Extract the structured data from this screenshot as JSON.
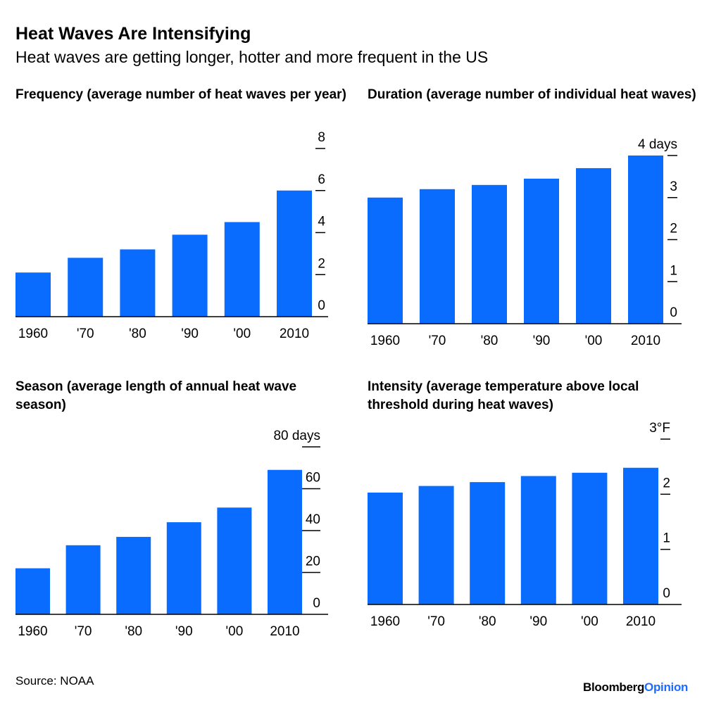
{
  "header": {
    "title": "Heat Waves Are Intensifying",
    "subtitle": "Heat waves are getting longer, hotter and more frequent in the US"
  },
  "footer": {
    "source": "Source: NOAA",
    "brand_bloomberg": "Bloomberg",
    "brand_opinion": "Opinion"
  },
  "colors": {
    "bar": "#0a6cff",
    "axis": "#000000",
    "brand_accent": "#1d6cff"
  },
  "chart_data": [
    {
      "type": "bar",
      "title": "Frequency (average number of heat waves per year)",
      "categories": [
        "1960",
        "'70",
        "'80",
        "'90",
        "'00",
        "2010"
      ],
      "values": [
        2.1,
        2.8,
        3.2,
        3.9,
        4.5,
        6.0
      ],
      "ylim": [
        0,
        8
      ],
      "yticks": [
        0,
        2,
        4,
        6,
        8
      ],
      "ytick_labels": [
        "0",
        "2",
        "4",
        "6",
        "8"
      ]
    },
    {
      "type": "bar",
      "title": "Duration (average number of individual heat waves)",
      "categories": [
        "1960",
        "'70",
        "'80",
        "'90",
        "'00",
        "2010"
      ],
      "values": [
        3.0,
        3.2,
        3.3,
        3.45,
        3.7,
        4.0
      ],
      "ylim": [
        0,
        4
      ],
      "yticks": [
        0,
        1,
        2,
        3,
        4
      ],
      "ytick_labels": [
        "0",
        "1",
        "2",
        "3",
        "4 days"
      ]
    },
    {
      "type": "bar",
      "title": "Season (average length of annual heat wave season)",
      "categories": [
        "1960",
        "'70",
        "'80",
        "'90",
        "'00",
        "2010"
      ],
      "values": [
        22,
        33,
        37,
        44,
        51,
        69
      ],
      "ylim": [
        0,
        80
      ],
      "yticks": [
        0,
        20,
        40,
        60,
        80
      ],
      "ytick_labels": [
        "0",
        "20",
        "40",
        "60",
        "80 days"
      ]
    },
    {
      "type": "bar",
      "title": "Intensity (average temperature above local threshold during heat waves)",
      "categories": [
        "1960",
        "'70",
        "'80",
        "'90",
        "'00",
        "2010"
      ],
      "values": [
        2.03,
        2.15,
        2.22,
        2.33,
        2.39,
        2.48
      ],
      "ylim": [
        0,
        3
      ],
      "yticks": [
        0,
        1,
        2,
        3
      ],
      "ytick_labels": [
        "0",
        "1",
        "2",
        "3°F"
      ]
    }
  ]
}
